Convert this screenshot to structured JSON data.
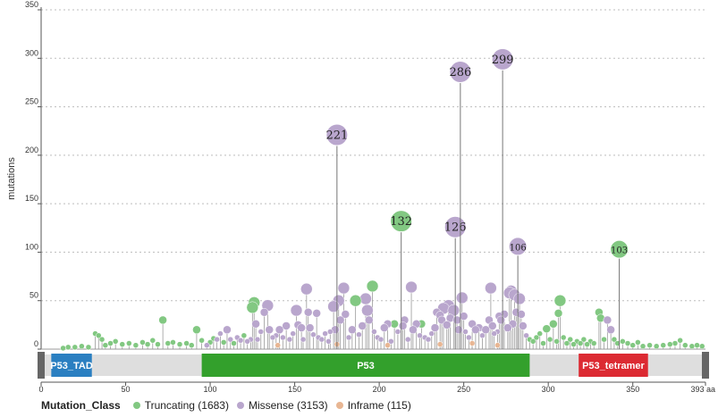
{
  "chart_data": {
    "type": "lollipop",
    "ylabel": "mutations",
    "ylim": [
      0,
      350
    ],
    "yticks": [
      0,
      50,
      100,
      150,
      200,
      250,
      300,
      350
    ],
    "xlim": [
      0,
      393
    ],
    "xticks": [
      0,
      50,
      100,
      150,
      200,
      250,
      300,
      350
    ],
    "xmax_label": "393 aa",
    "colors": {
      "Truncating": "#82c882",
      "Missense": "#b9a6cd",
      "Inframe": "#e8b693",
      "stem": "#9a9a9a"
    },
    "labeled_points": [
      {
        "pos": 175,
        "value": 221,
        "label": "221",
        "class": "Missense"
      },
      {
        "pos": 213,
        "value": 132,
        "label": "132",
        "class": "Truncating"
      },
      {
        "pos": 245,
        "value": 126,
        "label": "126",
        "class": "Missense"
      },
      {
        "pos": 248,
        "value": 286,
        "label": "286",
        "class": "Missense"
      },
      {
        "pos": 273,
        "value": 299,
        "label": "299",
        "class": "Missense"
      },
      {
        "pos": 282,
        "value": 106,
        "label": "106",
        "class": "Missense"
      },
      {
        "pos": 342,
        "value": 103,
        "label": "103",
        "class": "Truncating"
      }
    ],
    "points": [
      {
        "pos": 13,
        "value": 1,
        "class": "Truncating"
      },
      {
        "pos": 16,
        "value": 2,
        "class": "Truncating"
      },
      {
        "pos": 20,
        "value": 2,
        "class": "Truncating"
      },
      {
        "pos": 24,
        "value": 3,
        "class": "Truncating"
      },
      {
        "pos": 28,
        "value": 2,
        "class": "Truncating"
      },
      {
        "pos": 32,
        "value": 16,
        "class": "Truncating"
      },
      {
        "pos": 34,
        "value": 14,
        "class": "Truncating"
      },
      {
        "pos": 36,
        "value": 10,
        "class": "Truncating"
      },
      {
        "pos": 38,
        "value": 4,
        "class": "Truncating"
      },
      {
        "pos": 41,
        "value": 6,
        "class": "Truncating"
      },
      {
        "pos": 44,
        "value": 8,
        "class": "Truncating"
      },
      {
        "pos": 48,
        "value": 5,
        "class": "Truncating"
      },
      {
        "pos": 52,
        "value": 6,
        "class": "Truncating"
      },
      {
        "pos": 56,
        "value": 4,
        "class": "Truncating"
      },
      {
        "pos": 60,
        "value": 7,
        "class": "Truncating"
      },
      {
        "pos": 63,
        "value": 5,
        "class": "Truncating"
      },
      {
        "pos": 66,
        "value": 9,
        "class": "Truncating"
      },
      {
        "pos": 69,
        "value": 5,
        "class": "Truncating"
      },
      {
        "pos": 72,
        "value": 30,
        "class": "Truncating"
      },
      {
        "pos": 75,
        "value": 6,
        "class": "Truncating"
      },
      {
        "pos": 78,
        "value": 7,
        "class": "Truncating"
      },
      {
        "pos": 82,
        "value": 5,
        "class": "Truncating"
      },
      {
        "pos": 86,
        "value": 6,
        "class": "Truncating"
      },
      {
        "pos": 89,
        "value": 4,
        "class": "Truncating"
      },
      {
        "pos": 92,
        "value": 20,
        "class": "Truncating"
      },
      {
        "pos": 95,
        "value": 9,
        "class": "Truncating"
      },
      {
        "pos": 98,
        "value": 4,
        "class": "Missense"
      },
      {
        "pos": 100,
        "value": 7,
        "class": "Truncating"
      },
      {
        "pos": 102,
        "value": 11,
        "class": "Truncating"
      },
      {
        "pos": 104,
        "value": 10,
        "class": "Missense"
      },
      {
        "pos": 106,
        "value": 16,
        "class": "Missense"
      },
      {
        "pos": 108,
        "value": 7,
        "class": "Truncating"
      },
      {
        "pos": 110,
        "value": 20,
        "class": "Missense"
      },
      {
        "pos": 112,
        "value": 10,
        "class": "Missense"
      },
      {
        "pos": 114,
        "value": 6,
        "class": "Truncating"
      },
      {
        "pos": 116,
        "value": 12,
        "class": "Missense"
      },
      {
        "pos": 118,
        "value": 9,
        "class": "Missense"
      },
      {
        "pos": 120,
        "value": 14,
        "class": "Truncating"
      },
      {
        "pos": 122,
        "value": 8,
        "class": "Missense"
      },
      {
        "pos": 124,
        "value": 10,
        "class": "Missense"
      },
      {
        "pos": 125,
        "value": 43,
        "class": "Truncating"
      },
      {
        "pos": 126,
        "value": 48,
        "class": "Truncating"
      },
      {
        "pos": 127,
        "value": 26,
        "class": "Missense"
      },
      {
        "pos": 128,
        "value": 10,
        "class": "Missense"
      },
      {
        "pos": 130,
        "value": 18,
        "class": "Missense"
      },
      {
        "pos": 132,
        "value": 38,
        "class": "Missense"
      },
      {
        "pos": 134,
        "value": 45,
        "class": "Missense"
      },
      {
        "pos": 135,
        "value": 20,
        "class": "Missense"
      },
      {
        "pos": 137,
        "value": 12,
        "class": "Missense"
      },
      {
        "pos": 139,
        "value": 14,
        "class": "Missense"
      },
      {
        "pos": 141,
        "value": 20,
        "class": "Missense"
      },
      {
        "pos": 143,
        "value": 12,
        "class": "Missense"
      },
      {
        "pos": 145,
        "value": 24,
        "class": "Missense"
      },
      {
        "pos": 147,
        "value": 10,
        "class": "Missense"
      },
      {
        "pos": 149,
        "value": 16,
        "class": "Missense"
      },
      {
        "pos": 151,
        "value": 40,
        "class": "Missense"
      },
      {
        "pos": 152,
        "value": 25,
        "class": "Missense"
      },
      {
        "pos": 154,
        "value": 22,
        "class": "Missense"
      },
      {
        "pos": 155,
        "value": 10,
        "class": "Missense"
      },
      {
        "pos": 157,
        "value": 62,
        "class": "Missense"
      },
      {
        "pos": 158,
        "value": 38,
        "class": "Missense"
      },
      {
        "pos": 159,
        "value": 22,
        "class": "Missense"
      },
      {
        "pos": 161,
        "value": 15,
        "class": "Missense"
      },
      {
        "pos": 163,
        "value": 37,
        "class": "Missense"
      },
      {
        "pos": 164,
        "value": 12,
        "class": "Missense"
      },
      {
        "pos": 166,
        "value": 10,
        "class": "Missense"
      },
      {
        "pos": 168,
        "value": 16,
        "class": "Missense"
      },
      {
        "pos": 170,
        "value": 8,
        "class": "Missense"
      },
      {
        "pos": 171,
        "value": 18,
        "class": "Missense"
      },
      {
        "pos": 173,
        "value": 44,
        "class": "Missense"
      },
      {
        "pos": 174,
        "value": 20,
        "class": "Missense"
      },
      {
        "pos": 176,
        "value": 50,
        "class": "Missense"
      },
      {
        "pos": 177,
        "value": 30,
        "class": "Missense"
      },
      {
        "pos": 179,
        "value": 63,
        "class": "Missense"
      },
      {
        "pos": 180,
        "value": 36,
        "class": "Missense"
      },
      {
        "pos": 182,
        "value": 12,
        "class": "Missense"
      },
      {
        "pos": 184,
        "value": 20,
        "class": "Missense"
      },
      {
        "pos": 186,
        "value": 50,
        "class": "Truncating"
      },
      {
        "pos": 188,
        "value": 15,
        "class": "Missense"
      },
      {
        "pos": 190,
        "value": 24,
        "class": "Missense"
      },
      {
        "pos": 192,
        "value": 52,
        "class": "Missense"
      },
      {
        "pos": 193,
        "value": 40,
        "class": "Missense"
      },
      {
        "pos": 194,
        "value": 30,
        "class": "Missense"
      },
      {
        "pos": 196,
        "value": 65,
        "class": "Truncating"
      },
      {
        "pos": 197,
        "value": 18,
        "class": "Missense"
      },
      {
        "pos": 199,
        "value": 12,
        "class": "Missense"
      },
      {
        "pos": 201,
        "value": 10,
        "class": "Missense"
      },
      {
        "pos": 203,
        "value": 22,
        "class": "Missense"
      },
      {
        "pos": 205,
        "value": 26,
        "class": "Missense"
      },
      {
        "pos": 207,
        "value": 8,
        "class": "Missense"
      },
      {
        "pos": 209,
        "value": 26,
        "class": "Truncating"
      },
      {
        "pos": 211,
        "value": 18,
        "class": "Missense"
      },
      {
        "pos": 214,
        "value": 24,
        "class": "Missense"
      },
      {
        "pos": 215,
        "value": 30,
        "class": "Missense"
      },
      {
        "pos": 217,
        "value": 10,
        "class": "Missense"
      },
      {
        "pos": 219,
        "value": 64,
        "class": "Missense"
      },
      {
        "pos": 220,
        "value": 20,
        "class": "Missense"
      },
      {
        "pos": 222,
        "value": 26,
        "class": "Missense"
      },
      {
        "pos": 224,
        "value": 14,
        "class": "Missense"
      },
      {
        "pos": 225,
        "value": 26,
        "class": "Truncating"
      },
      {
        "pos": 227,
        "value": 12,
        "class": "Missense"
      },
      {
        "pos": 229,
        "value": 10,
        "class": "Missense"
      },
      {
        "pos": 231,
        "value": 16,
        "class": "Missense"
      },
      {
        "pos": 233,
        "value": 22,
        "class": "Missense"
      },
      {
        "pos": 234,
        "value": 38,
        "class": "Missense"
      },
      {
        "pos": 236,
        "value": 35,
        "class": "Missense"
      },
      {
        "pos": 237,
        "value": 30,
        "class": "Missense"
      },
      {
        "pos": 238,
        "value": 42,
        "class": "Missense"
      },
      {
        "pos": 240,
        "value": 25,
        "class": "Missense"
      },
      {
        "pos": 241,
        "value": 45,
        "class": "Missense"
      },
      {
        "pos": 242,
        "value": 32,
        "class": "Missense"
      },
      {
        "pos": 244,
        "value": 40,
        "class": "Missense"
      },
      {
        "pos": 246,
        "value": 30,
        "class": "Missense"
      },
      {
        "pos": 247,
        "value": 20,
        "class": "Missense"
      },
      {
        "pos": 249,
        "value": 53,
        "class": "Missense"
      },
      {
        "pos": 250,
        "value": 34,
        "class": "Missense"
      },
      {
        "pos": 251,
        "value": 18,
        "class": "Missense"
      },
      {
        "pos": 253,
        "value": 12,
        "class": "Missense"
      },
      {
        "pos": 255,
        "value": 26,
        "class": "Missense"
      },
      {
        "pos": 257,
        "value": 20,
        "class": "Missense"
      },
      {
        "pos": 259,
        "value": 22,
        "class": "Missense"
      },
      {
        "pos": 261,
        "value": 14,
        "class": "Missense"
      },
      {
        "pos": 263,
        "value": 20,
        "class": "Missense"
      },
      {
        "pos": 265,
        "value": 30,
        "class": "Missense"
      },
      {
        "pos": 266,
        "value": 63,
        "class": "Missense"
      },
      {
        "pos": 267,
        "value": 24,
        "class": "Missense"
      },
      {
        "pos": 268,
        "value": 16,
        "class": "Missense"
      },
      {
        "pos": 270,
        "value": 18,
        "class": "Missense"
      },
      {
        "pos": 271,
        "value": 34,
        "class": "Missense"
      },
      {
        "pos": 272,
        "value": 30,
        "class": "Missense"
      },
      {
        "pos": 274,
        "value": 36,
        "class": "Missense"
      },
      {
        "pos": 276,
        "value": 22,
        "class": "Missense"
      },
      {
        "pos": 277,
        "value": 58,
        "class": "Missense"
      },
      {
        "pos": 278,
        "value": 60,
        "class": "Missense"
      },
      {
        "pos": 279,
        "value": 26,
        "class": "Missense"
      },
      {
        "pos": 280,
        "value": 56,
        "class": "Missense"
      },
      {
        "pos": 281,
        "value": 38,
        "class": "Missense"
      },
      {
        "pos": 283,
        "value": 52,
        "class": "Missense"
      },
      {
        "pos": 284,
        "value": 36,
        "class": "Missense"
      },
      {
        "pos": 285,
        "value": 24,
        "class": "Missense"
      },
      {
        "pos": 287,
        "value": 14,
        "class": "Missense"
      },
      {
        "pos": 289,
        "value": 10,
        "class": "Truncating"
      },
      {
        "pos": 291,
        "value": 8,
        "class": "Truncating"
      },
      {
        "pos": 293,
        "value": 12,
        "class": "Truncating"
      },
      {
        "pos": 295,
        "value": 16,
        "class": "Truncating"
      },
      {
        "pos": 297,
        "value": 6,
        "class": "Truncating"
      },
      {
        "pos": 299,
        "value": 21,
        "class": "Truncating"
      },
      {
        "pos": 301,
        "value": 10,
        "class": "Truncating"
      },
      {
        "pos": 303,
        "value": 26,
        "class": "Truncating"
      },
      {
        "pos": 305,
        "value": 8,
        "class": "Truncating"
      },
      {
        "pos": 306,
        "value": 37,
        "class": "Truncating"
      },
      {
        "pos": 307,
        "value": 50,
        "class": "Truncating"
      },
      {
        "pos": 309,
        "value": 12,
        "class": "Truncating"
      },
      {
        "pos": 311,
        "value": 6,
        "class": "Truncating"
      },
      {
        "pos": 313,
        "value": 10,
        "class": "Truncating"
      },
      {
        "pos": 315,
        "value": 5,
        "class": "Truncating"
      },
      {
        "pos": 317,
        "value": 8,
        "class": "Truncating"
      },
      {
        "pos": 319,
        "value": 6,
        "class": "Truncating"
      },
      {
        "pos": 321,
        "value": 10,
        "class": "Truncating"
      },
      {
        "pos": 323,
        "value": 5,
        "class": "Truncating"
      },
      {
        "pos": 325,
        "value": 8,
        "class": "Truncating"
      },
      {
        "pos": 327,
        "value": 6,
        "class": "Truncating"
      },
      {
        "pos": 330,
        "value": 38,
        "class": "Truncating"
      },
      {
        "pos": 331,
        "value": 32,
        "class": "Truncating"
      },
      {
        "pos": 333,
        "value": 10,
        "class": "Truncating"
      },
      {
        "pos": 335,
        "value": 30,
        "class": "Missense"
      },
      {
        "pos": 337,
        "value": 20,
        "class": "Missense"
      },
      {
        "pos": 339,
        "value": 10,
        "class": "Truncating"
      },
      {
        "pos": 341,
        "value": 6,
        "class": "Truncating"
      },
      {
        "pos": 344,
        "value": 8,
        "class": "Truncating"
      },
      {
        "pos": 347,
        "value": 6,
        "class": "Truncating"
      },
      {
        "pos": 350,
        "value": 4,
        "class": "Truncating"
      },
      {
        "pos": 353,
        "value": 7,
        "class": "Truncating"
      },
      {
        "pos": 356,
        "value": 3,
        "class": "Truncating"
      },
      {
        "pos": 360,
        "value": 4,
        "class": "Truncating"
      },
      {
        "pos": 364,
        "value": 3,
        "class": "Truncating"
      },
      {
        "pos": 368,
        "value": 4,
        "class": "Truncating"
      },
      {
        "pos": 372,
        "value": 5,
        "class": "Truncating"
      },
      {
        "pos": 375,
        "value": 6,
        "class": "Truncating"
      },
      {
        "pos": 378,
        "value": 9,
        "class": "Truncating"
      },
      {
        "pos": 381,
        "value": 4,
        "class": "Truncating"
      },
      {
        "pos": 385,
        "value": 3,
        "class": "Truncating"
      },
      {
        "pos": 388,
        "value": 4,
        "class": "Truncating"
      },
      {
        "pos": 391,
        "value": 3,
        "class": "Truncating"
      },
      {
        "pos": 140,
        "value": 4,
        "class": "Inframe"
      },
      {
        "pos": 175,
        "value": 5,
        "class": "Inframe"
      },
      {
        "pos": 205,
        "value": 4,
        "class": "Inframe"
      },
      {
        "pos": 236,
        "value": 5,
        "class": "Inframe"
      },
      {
        "pos": 255,
        "value": 6,
        "class": "Inframe"
      },
      {
        "pos": 270,
        "value": 4,
        "class": "Inframe"
      }
    ],
    "domains": [
      {
        "name": "P53_TAD",
        "start": 6,
        "end": 30,
        "color": "#2a7fc1"
      },
      {
        "name": "P53",
        "start": 95,
        "end": 289,
        "color": "#33a02c"
      },
      {
        "name": "P53_tetramer",
        "start": 318,
        "end": 359,
        "color": "#dc2a32"
      }
    ],
    "legend": {
      "title": "Mutation_Class",
      "items": [
        {
          "label": "Truncating (1683)",
          "color": "#82c882"
        },
        {
          "label": "Missense (3153)",
          "color": "#b9a6cd"
        },
        {
          "label": "Inframe (115)",
          "color": "#e8b693"
        }
      ]
    }
  }
}
